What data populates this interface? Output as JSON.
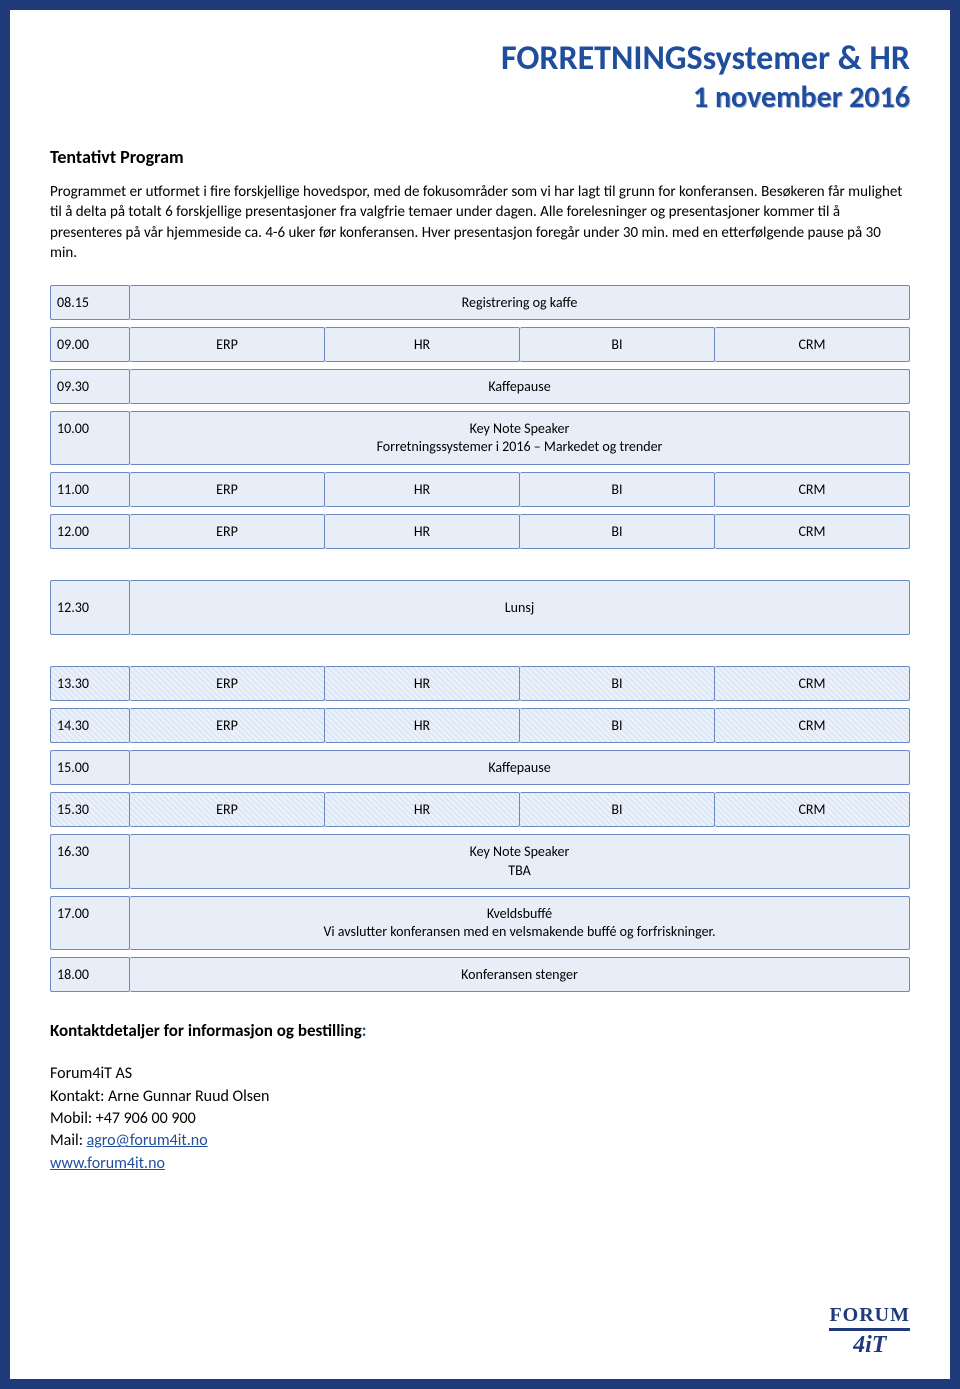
{
  "header": {
    "title": "FORRETNINGSsystemer & HR",
    "date": "1 november 2016"
  },
  "sectionTitle": "Tentativt Program",
  "introText": "Programmet er utformet i fire forskjellige hovedspor, med de fokusområder som vi har lagt til grunn for konferansen. Besøkeren får mulighet til å delta på totalt 6 forskjellige presentasjoner fra valgfrie temaer under dagen. Alle forelesninger og presentasjoner kommer til å presenteres på vår hjemmeside ca. 4-6 uker før konferansen. Hver presentasjon foregår under 30 min. med en etterfølgende pause på 30 min.",
  "tracks": [
    "ERP",
    "HR",
    "BI",
    "CRM"
  ],
  "schedule": [
    {
      "time": "08.15",
      "type": "full",
      "text": "Registrering og kaffe",
      "patterned": false
    },
    {
      "time": "09.00",
      "type": "tracks",
      "patterned": false
    },
    {
      "time": "09.30",
      "type": "full",
      "text": "Kaffepause",
      "patterned": false
    },
    {
      "time": "10.00",
      "type": "full",
      "text": "Key Note Speaker\nForretningssystemer i 2016 – Markedet og trender",
      "patterned": false
    },
    {
      "time": "11.00",
      "type": "tracks",
      "patterned": false
    },
    {
      "time": "12.00",
      "type": "tracks",
      "patterned": false
    },
    {
      "type": "gap"
    },
    {
      "time": "12.30",
      "type": "full",
      "text": "Lunsj",
      "patterned": false,
      "tall": true
    },
    {
      "type": "gap"
    },
    {
      "time": "13.30",
      "type": "tracks",
      "patterned": true
    },
    {
      "time": "14.30",
      "type": "tracks",
      "patterned": true
    },
    {
      "time": "15.00",
      "type": "full",
      "text": "Kaffepause",
      "patterned": false
    },
    {
      "time": "15.30",
      "type": "tracks",
      "patterned": true
    },
    {
      "time": "16.30",
      "type": "full",
      "text": "Key Note Speaker\nTBA",
      "patterned": false
    },
    {
      "time": "17.00",
      "type": "full",
      "text": "Kveldsbuffé\nVi avslutter konferansen med en velsmakende buffé og forfriskninger.",
      "patterned": false
    },
    {
      "time": "18.00",
      "type": "full",
      "text": "Konferansen stenger",
      "patterned": false
    }
  ],
  "contact": {
    "title": "Kontaktdetaljer for informasjon og bestilling",
    "company": "Forum4iT AS",
    "person": "Kontakt: Arne Gunnar Ruud Olsen",
    "mobile": "Mobil: +47 906 00 900",
    "mailLabel": "Mail: ",
    "mail": "agro@forum4it.no",
    "web": "www.forum4it.no"
  },
  "logo": {
    "top": "FORUM",
    "bottom": "4iT"
  },
  "colors": {
    "borderNavy": "#1f3a7a",
    "headerBlue": "#1f4e9c",
    "cellBorder": "#6b88c2",
    "cellBg": "#e8eef8",
    "link": "#1f4e9c"
  }
}
